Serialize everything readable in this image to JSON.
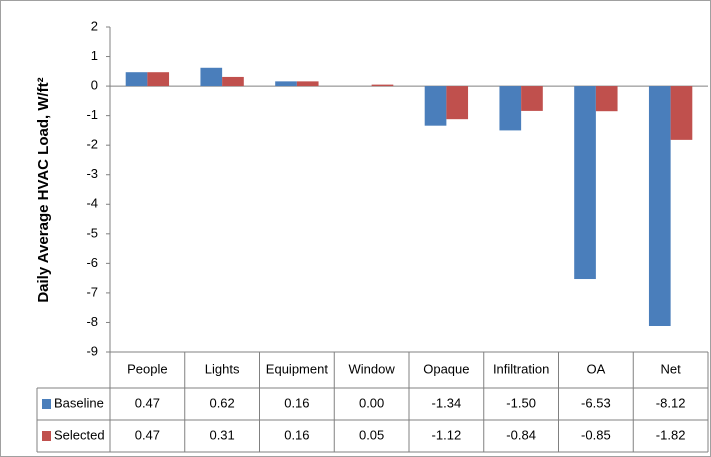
{
  "chart_data": {
    "type": "bar",
    "ylabel": "Daily Average HVAC Load, W/ft²",
    "categories": [
      "People",
      "Lights",
      "Equipment",
      "Window",
      "Opaque",
      "Infiltration",
      "OA",
      "Net"
    ],
    "series": [
      {
        "name": "Baseline",
        "color": "#4a7ebb",
        "values": [
          0.47,
          0.62,
          0.16,
          0.0,
          -1.34,
          -1.5,
          -6.53,
          -8.12
        ],
        "value_labels": [
          "0.47",
          "0.62",
          "0.16",
          "0.00",
          "-1.34",
          "-1.50",
          "-6.53",
          "-8.12"
        ]
      },
      {
        "name": "Selected",
        "color": "#c0504d",
        "values": [
          0.47,
          0.31,
          0.16,
          0.05,
          -1.12,
          -0.84,
          -0.85,
          -1.82
        ],
        "value_labels": [
          "0.47",
          "0.31",
          "0.16",
          "0.05",
          "-1.12",
          "-0.84",
          "-0.85",
          "-1.82"
        ]
      }
    ],
    "ylim": [
      -9,
      2
    ],
    "yticks": [
      -9,
      -8,
      -7,
      -6,
      -5,
      -4,
      -3,
      -2,
      -1,
      0,
      1,
      2
    ],
    "grid": false,
    "data_table": true
  }
}
